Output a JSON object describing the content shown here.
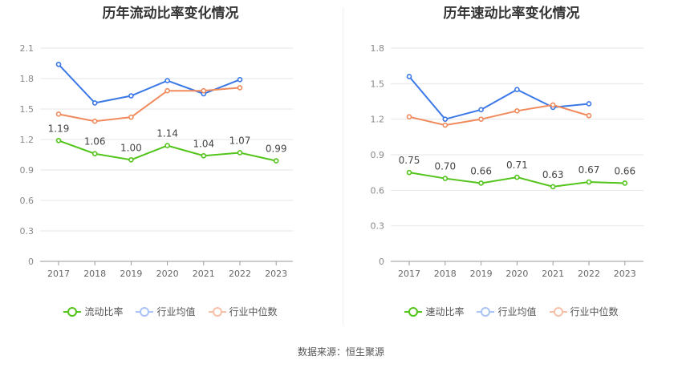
{
  "colors": {
    "company": "#52c41a",
    "industry_avg": "#3b78e7",
    "industry_median": "#f08a5d"
  },
  "source": "数据来源：恒生聚源",
  "chart_data": [
    {
      "type": "line",
      "title": "历年流动比率变化情况",
      "categories": [
        "2017",
        "2018",
        "2019",
        "2020",
        "2021",
        "2022",
        "2023"
      ],
      "y_ticks": [
        "0",
        "0.3",
        "0.6",
        "0.9",
        "1.2",
        "1.5",
        "1.8",
        "2.1"
      ],
      "ylim": [
        0,
        2.1
      ],
      "grid": true,
      "legend_position": "bottom",
      "series": [
        {
          "name": "流动比率",
          "values": [
            1.19,
            1.06,
            1.0,
            1.14,
            1.04,
            1.07,
            0.99
          ],
          "labels": [
            "1.19",
            "1.06",
            "1.00",
            "1.14",
            "1.04",
            "1.07",
            "0.99"
          ]
        },
        {
          "name": "行业均值",
          "values": [
            1.94,
            1.56,
            1.63,
            1.78,
            1.65,
            1.79,
            null
          ]
        },
        {
          "name": "行业中位数",
          "values": [
            1.45,
            1.38,
            1.42,
            1.68,
            1.68,
            1.71,
            null
          ]
        }
      ]
    },
    {
      "type": "line",
      "title": "历年速动比率变化情况",
      "categories": [
        "2017",
        "2018",
        "2019",
        "2020",
        "2021",
        "2022",
        "2023"
      ],
      "y_ticks": [
        "0",
        "0.3",
        "0.6",
        "0.9",
        "1.2",
        "1.5",
        "1.8"
      ],
      "ylim": [
        0,
        1.8
      ],
      "grid": true,
      "legend_position": "bottom",
      "series": [
        {
          "name": "速动比率",
          "values": [
            0.75,
            0.7,
            0.66,
            0.71,
            0.63,
            0.67,
            0.66
          ],
          "labels": [
            "0.75",
            "0.70",
            "0.66",
            "0.71",
            "0.63",
            "0.67",
            "0.66"
          ]
        },
        {
          "name": "行业均值",
          "values": [
            1.56,
            1.2,
            1.28,
            1.45,
            1.3,
            1.33,
            null
          ]
        },
        {
          "name": "行业中位数",
          "values": [
            1.22,
            1.15,
            1.2,
            1.27,
            1.32,
            1.23,
            null
          ]
        }
      ]
    }
  ]
}
